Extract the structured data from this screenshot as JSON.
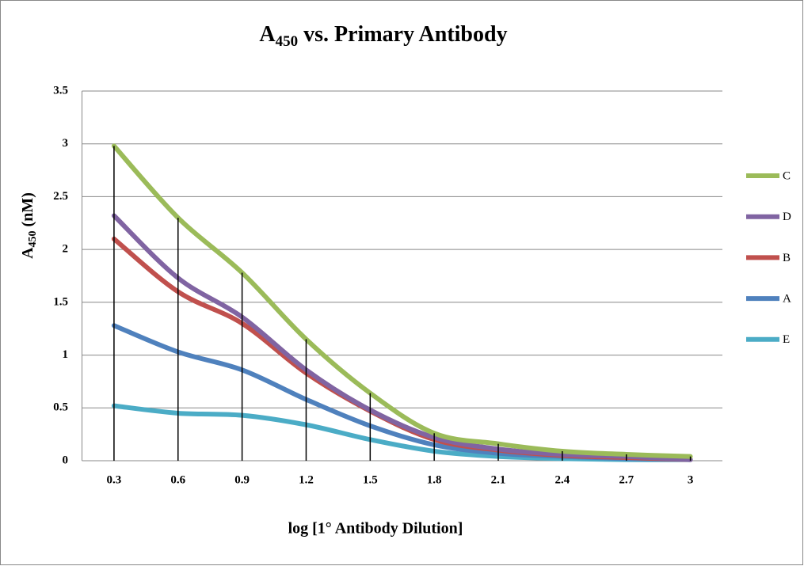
{
  "chart_data": {
    "type": "line",
    "title": {
      "main": "A",
      "sub": "450",
      "rest": " vs. Primary Antibody"
    },
    "y_label": {
      "main": "A",
      "sub": "450",
      "rest": "  (nM)"
    },
    "x_label": "log [1° Antibody Dilution]",
    "categories": [
      0.3,
      0.6,
      0.9,
      1.2,
      1.5,
      1.8,
      2.1,
      2.4,
      2.7,
      3
    ],
    "ylim": [
      0,
      3.5
    ],
    "yticks": [
      0,
      0.5,
      1,
      1.5,
      2,
      2.5,
      3,
      3.5
    ],
    "grid": true,
    "drop_lines": true,
    "legend": "right",
    "series": [
      {
        "name": "C",
        "color": "#9bbb59",
        "values": [
          2.98,
          2.3,
          1.78,
          1.15,
          0.64,
          0.26,
          0.16,
          0.09,
          0.06,
          0.04
        ]
      },
      {
        "name": "D",
        "color": "#8064a2",
        "values": [
          2.32,
          1.73,
          1.36,
          0.86,
          0.48,
          0.22,
          0.11,
          0.06,
          0.04,
          0.01
        ]
      },
      {
        "name": "B",
        "color": "#c0504d",
        "values": [
          2.1,
          1.6,
          1.3,
          0.83,
          0.47,
          0.2,
          0.1,
          0.05,
          0.03,
          0.01
        ]
      },
      {
        "name": "A",
        "color": "#4f81bd",
        "values": [
          1.28,
          1.03,
          0.86,
          0.58,
          0.33,
          0.15,
          0.07,
          0.04,
          0.02,
          0.01
        ]
      },
      {
        "name": "E",
        "color": "#4bacc6",
        "values": [
          0.52,
          0.45,
          0.43,
          0.34,
          0.2,
          0.09,
          0.04,
          0.02,
          0.01,
          0.01
        ]
      }
    ]
  }
}
